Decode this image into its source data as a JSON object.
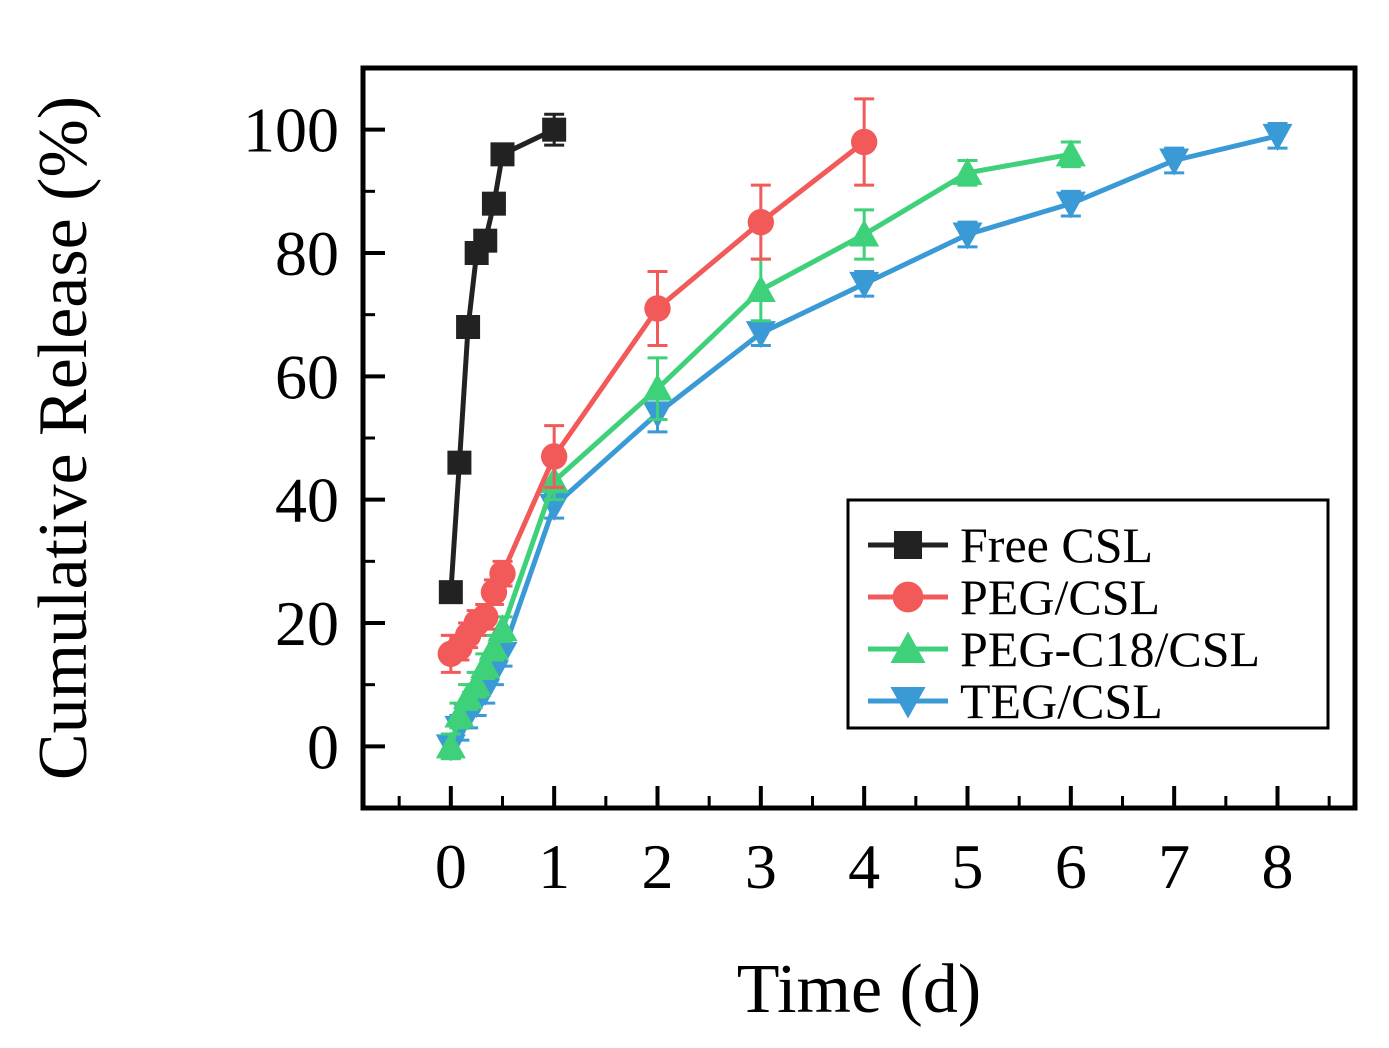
{
  "chart_data": {
    "type": "line",
    "xlabel": "Time (d)",
    "ylabel": "Cumulative Release (%)",
    "xlim": [
      -0.85,
      8.75
    ],
    "ylim": [
      -10,
      110
    ],
    "xticks": [
      0,
      1,
      2,
      3,
      4,
      5,
      6,
      7,
      8
    ],
    "yticks": [
      0,
      20,
      40,
      60,
      80,
      100
    ],
    "xtick_labels": [
      "0",
      "1",
      "2",
      "3",
      "4",
      "5",
      "6",
      "7",
      "8"
    ],
    "ytick_labels": [
      "0",
      "20",
      "40",
      "60",
      "80",
      "100"
    ],
    "legend_position": "bottom-right",
    "series": [
      {
        "name": "Free CSL",
        "color": "#222222",
        "marker": "square",
        "x": [
          0,
          0.083,
          0.167,
          0.25,
          0.333,
          0.417,
          0.5,
          1
        ],
        "y": [
          25,
          46,
          68,
          80,
          82,
          88,
          96,
          100
        ],
        "err": [
          0,
          0,
          0,
          0,
          0,
          0,
          0,
          2.5
        ]
      },
      {
        "name": "PEG/CSL",
        "color": "#f25a5a",
        "marker": "circle",
        "x": [
          0,
          0.083,
          0.167,
          0.25,
          0.333,
          0.417,
          0.5,
          1,
          2,
          3,
          4
        ],
        "y": [
          15,
          16,
          18,
          20,
          21,
          25,
          28,
          47,
          71,
          85,
          98
        ],
        "err": [
          3,
          2,
          2,
          2,
          2,
          2,
          2,
          5,
          6,
          6,
          7
        ]
      },
      {
        "name": "PEG-C18/CSL",
        "color": "#3fd17a",
        "marker": "triangle-up",
        "x": [
          0,
          0.083,
          0.167,
          0.25,
          0.333,
          0.417,
          0.5,
          1,
          2,
          3,
          4,
          5,
          6
        ],
        "y": [
          0,
          5,
          8,
          10,
          13,
          16,
          19,
          43,
          58,
          74,
          83,
          93,
          96
        ],
        "err": [
          2,
          2,
          2,
          2,
          2,
          2,
          2,
          3,
          5,
          5,
          4,
          2,
          2
        ]
      },
      {
        "name": "TEG/CSL",
        "color": "#3a9ad6",
        "marker": "triangle-down",
        "x": [
          0,
          0.083,
          0.167,
          0.25,
          0.333,
          0.417,
          0.5,
          1,
          2,
          3,
          4,
          5,
          6,
          7,
          8
        ],
        "y": [
          0,
          3,
          5,
          7,
          9,
          12,
          15,
          39,
          54,
          67,
          75,
          83,
          88,
          95,
          99
        ],
        "err": [
          2,
          2,
          2,
          2,
          2,
          2,
          2,
          2,
          3,
          2,
          2,
          2,
          2,
          2,
          2
        ]
      }
    ]
  }
}
